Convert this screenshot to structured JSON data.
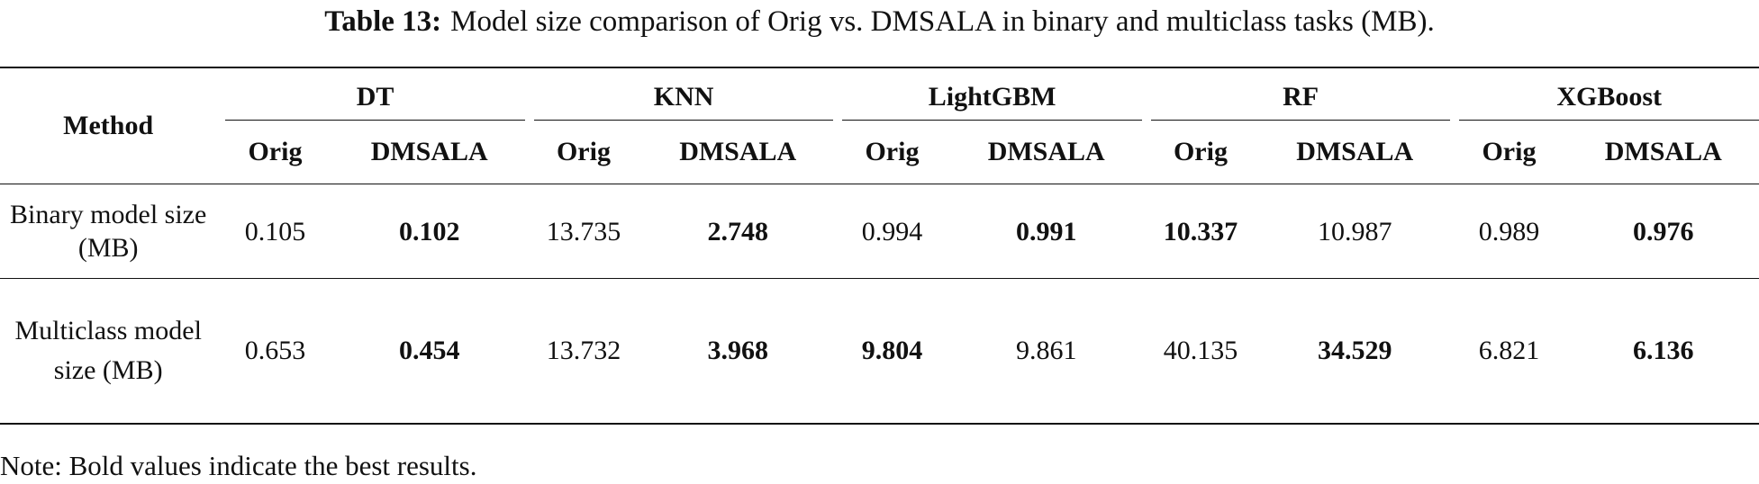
{
  "caption": {
    "label": "Table 13:",
    "text": "Model size comparison of Orig vs. DMSALA in binary and multiclass tasks (MB)."
  },
  "table": {
    "method_header": "Method",
    "groups": [
      "DT",
      "KNN",
      "LightGBM",
      "RF",
      "XGBoost"
    ],
    "subheaders": [
      "Orig",
      "DMSALA",
      "Orig",
      "DMSALA",
      "Orig",
      "DMSALA",
      "Orig",
      "DMSALA",
      "Orig",
      "DMSALA"
    ],
    "rows": [
      {
        "label": "Binary model size (MB)",
        "cells": [
          "0.105",
          "0.102",
          "13.735",
          "2.748",
          "0.994",
          "0.991",
          "10.337",
          "10.987",
          "0.989",
          "0.976"
        ],
        "bold": [
          false,
          true,
          false,
          true,
          false,
          true,
          true,
          false,
          false,
          true
        ]
      },
      {
        "label": "Multiclass model size (MB)",
        "cells": [
          "0.653",
          "0.454",
          "13.732",
          "3.968",
          "9.804",
          "9.861",
          "40.135",
          "34.529",
          "6.821",
          "6.136"
        ],
        "bold": [
          false,
          true,
          false,
          true,
          true,
          false,
          false,
          true,
          false,
          true
        ]
      }
    ]
  },
  "note": "Note: Bold values indicate the best results."
}
